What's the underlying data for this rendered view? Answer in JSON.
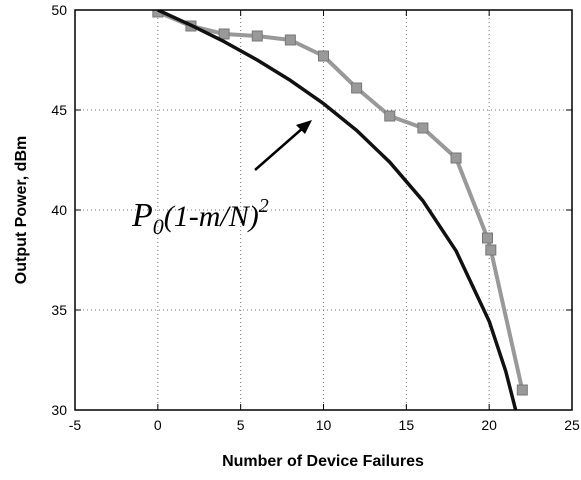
{
  "chart_data": {
    "type": "line",
    "xlabel": "Number of Device Failures",
    "ylabel": "Output Power, dBm",
    "annotation": {
      "base": "P",
      "sub": "0",
      "body": "(1-m/N)",
      "sup": "2"
    },
    "xlim": [
      -5,
      25
    ],
    "xticks": [
      -5,
      0,
      5,
      10,
      15,
      20,
      25
    ],
    "ylim": [
      30,
      50
    ],
    "yticks": [
      30,
      35,
      40,
      45,
      50
    ],
    "grid": true,
    "series": [
      {
        "color": "#999999",
        "marker": "square",
        "x": [
          0,
          2,
          4,
          6,
          8,
          10,
          12,
          14,
          16,
          18,
          19.9,
          20.1,
          22
        ],
        "values": [
          49.9,
          49.2,
          48.8,
          48.7,
          48.5,
          47.7,
          46.1,
          44.7,
          44.1,
          42.6,
          38.6,
          38.0,
          31.0
        ]
      },
      {
        "color": "#111111",
        "x": [
          0,
          2,
          4,
          6,
          8,
          10,
          12,
          14,
          16,
          18,
          20,
          21,
          21.6
        ],
        "values": [
          50,
          49.24,
          48.42,
          47.5,
          46.48,
          45.32,
          43.98,
          42.39,
          40.46,
          37.96,
          34.44,
          31.94,
          30
        ]
      }
    ]
  }
}
